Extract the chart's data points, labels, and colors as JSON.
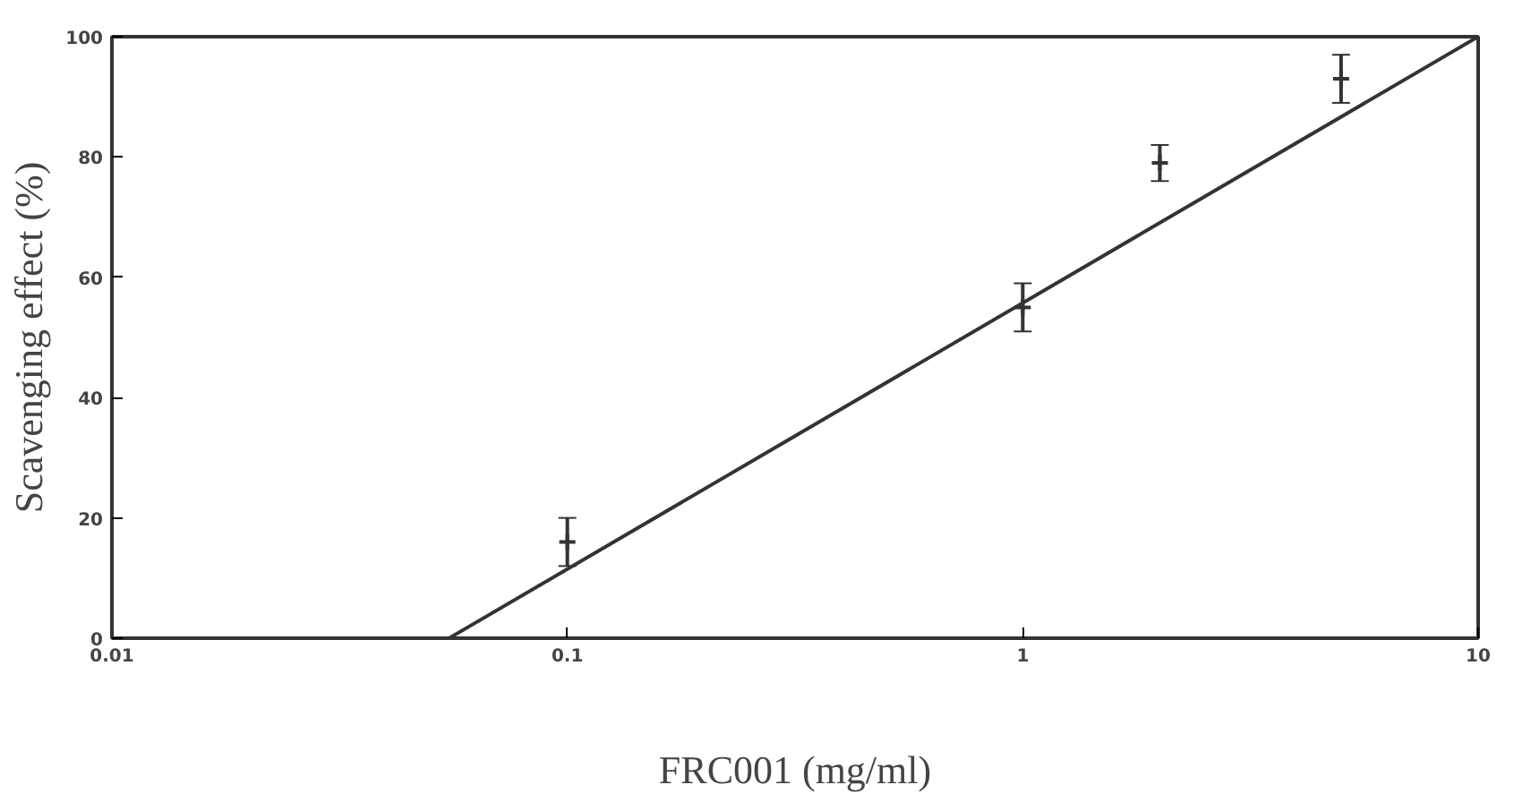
{
  "chart_data": {
    "type": "scatter",
    "xlabel": "FRC001 (mg/ml)",
    "ylabel": "Scavenging effect (%)",
    "log": "x",
    "xlim": [
      0.01,
      10
    ],
    "xticks": [
      0.01,
      0.1,
      1,
      {
        "value": 10,
        "label": "10"
      }
    ],
    "ylim": [
      0,
      100
    ],
    "yticks": [
      0,
      20,
      40,
      60,
      80,
      100
    ],
    "grid": false,
    "series": [
      {
        "marker": "cross",
        "color": "#333333",
        "x": [
          0.1,
          1,
          2,
          5
        ],
        "values": [
          16,
          55,
          79,
          93
        ],
        "errors": [
          4,
          4,
          3,
          4
        ]
      },
      {
        "type": "line",
        "color": "#333333",
        "x": [
          0.055,
          10
        ],
        "values": [
          0,
          100
        ],
        "line_style": "solid"
      }
    ]
  }
}
